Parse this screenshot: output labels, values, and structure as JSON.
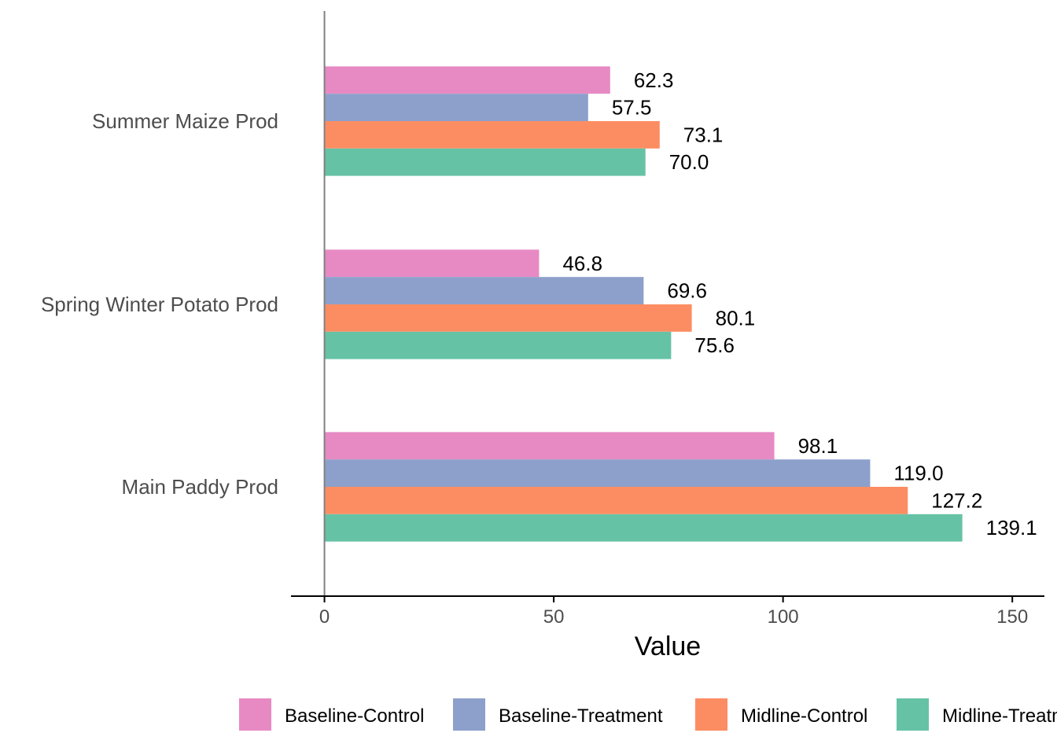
{
  "chart_data": {
    "type": "bar",
    "orientation": "horizontal",
    "categories": [
      "Summer Maize Prod",
      "Spring Winter Potato Prod",
      "Main Paddy Prod"
    ],
    "series": [
      {
        "name": "Baseline-Control",
        "color": "#e78ac3",
        "values": [
          62.3,
          46.8,
          98.1
        ]
      },
      {
        "name": "Baseline-Treatment",
        "color": "#8da0cb",
        "values": [
          57.5,
          69.6,
          119.0
        ]
      },
      {
        "name": "Midline-Control",
        "color": "#fc8d62",
        "values": [
          73.1,
          80.1,
          127.2
        ]
      },
      {
        "name": "Midline-Treatment",
        "color": "#66c2a5",
        "values": [
          70.0,
          75.6,
          139.1
        ]
      }
    ],
    "data_labels": [
      [
        "62.3",
        "57.5",
        "73.1",
        "70.0"
      ],
      [
        "46.8",
        "69.6",
        "80.1",
        "75.6"
      ],
      [
        "98.1",
        "119.0",
        "127.2",
        "139.1"
      ]
    ],
    "xlabel": "Value",
    "ylabel": "",
    "xticks": [
      0,
      50,
      100,
      150
    ],
    "xlim": [
      -7.3,
      157
    ],
    "grid": false,
    "legend_position": "bottom"
  }
}
